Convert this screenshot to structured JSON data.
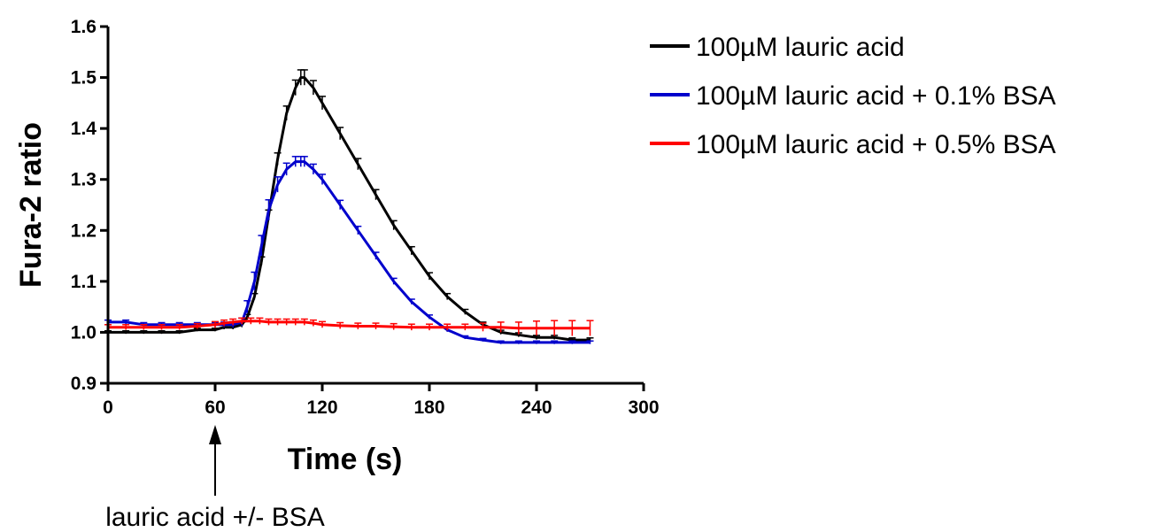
{
  "chart_data": {
    "type": "line",
    "title": "",
    "xlabel": "Time (s)",
    "ylabel": "Fura-2 ratio",
    "xlim": [
      0,
      300
    ],
    "ylim": [
      0.9,
      1.6
    ],
    "xticks": [
      0,
      60,
      120,
      180,
      240,
      300
    ],
    "yticks": [
      0.9,
      1.0,
      1.1,
      1.2,
      1.3,
      1.4,
      1.5,
      1.6
    ],
    "grid": false,
    "legend_position": "top-right",
    "error_bars": true,
    "series": [
      {
        "name": "100µM lauric acid",
        "color": "#000000",
        "x": [
          0,
          10,
          20,
          30,
          40,
          50,
          60,
          65,
          70,
          75,
          78,
          82,
          86,
          90,
          95,
          100,
          105,
          108,
          110,
          115,
          120,
          130,
          140,
          150,
          160,
          170,
          180,
          190,
          200,
          210,
          220,
          230,
          240,
          250,
          260,
          270
        ],
        "y": [
          1.0,
          1.0,
          1.0,
          1.0,
          1.0,
          1.005,
          1.005,
          1.01,
          1.01,
          1.015,
          1.03,
          1.07,
          1.14,
          1.23,
          1.34,
          1.43,
          1.48,
          1.5,
          1.5,
          1.48,
          1.45,
          1.39,
          1.33,
          1.27,
          1.21,
          1.16,
          1.11,
          1.07,
          1.04,
          1.015,
          1.0,
          0.995,
          0.99,
          0.99,
          0.985,
          0.985
        ],
        "err": [
          0.003,
          0.003,
          0.003,
          0.003,
          0.003,
          0.003,
          0.003,
          0.004,
          0.004,
          0.005,
          0.005,
          0.006,
          0.008,
          0.01,
          0.012,
          0.014,
          0.015,
          0.015,
          0.015,
          0.014,
          0.013,
          0.012,
          0.011,
          0.01,
          0.009,
          0.008,
          0.007,
          0.006,
          0.005,
          0.005,
          0.004,
          0.004,
          0.004,
          0.004,
          0.004,
          0.004
        ]
      },
      {
        "name": "100µM lauric acid + 0.1% BSA",
        "color": "#0000cc",
        "x": [
          0,
          10,
          20,
          30,
          40,
          50,
          60,
          65,
          70,
          75,
          78,
          82,
          86,
          90,
          95,
          100,
          105,
          108,
          110,
          115,
          120,
          130,
          140,
          150,
          160,
          170,
          180,
          190,
          200,
          210,
          220,
          230,
          240,
          250,
          260,
          270
        ],
        "y": [
          1.02,
          1.02,
          1.015,
          1.015,
          1.015,
          1.015,
          1.015,
          1.015,
          1.015,
          1.02,
          1.05,
          1.1,
          1.17,
          1.24,
          1.29,
          1.32,
          1.335,
          1.335,
          1.335,
          1.32,
          1.3,
          1.25,
          1.2,
          1.15,
          1.1,
          1.06,
          1.03,
          1.005,
          0.99,
          0.985,
          0.98,
          0.98,
          0.98,
          0.98,
          0.98,
          0.98
        ],
        "err": [
          0.004,
          0.004,
          0.004,
          0.004,
          0.004,
          0.004,
          0.004,
          0.005,
          0.006,
          0.008,
          0.012,
          0.018,
          0.02,
          0.02,
          0.015,
          0.012,
          0.01,
          0.01,
          0.01,
          0.01,
          0.01,
          0.009,
          0.008,
          0.007,
          0.006,
          0.005,
          0.004,
          0.004,
          0.003,
          0.003,
          0.003,
          0.003,
          0.003,
          0.003,
          0.003,
          0.003
        ]
      },
      {
        "name": "100µM lauric acid + 0.5% BSA",
        "color": "#ff0000",
        "x": [
          0,
          10,
          20,
          30,
          40,
          50,
          60,
          65,
          70,
          75,
          80,
          85,
          90,
          95,
          100,
          105,
          110,
          115,
          120,
          130,
          140,
          150,
          160,
          170,
          180,
          190,
          200,
          210,
          220,
          230,
          240,
          250,
          260,
          270
        ],
        "y": [
          1.01,
          1.01,
          1.01,
          1.01,
          1.01,
          1.012,
          1.015,
          1.018,
          1.02,
          1.022,
          1.022,
          1.022,
          1.02,
          1.02,
          1.02,
          1.02,
          1.02,
          1.018,
          1.015,
          1.013,
          1.012,
          1.012,
          1.011,
          1.01,
          1.01,
          1.01,
          1.01,
          1.01,
          1.01,
          1.008,
          1.008,
          1.008,
          1.008,
          1.008
        ],
        "err": [
          0.005,
          0.005,
          0.005,
          0.005,
          0.005,
          0.005,
          0.006,
          0.006,
          0.006,
          0.006,
          0.006,
          0.006,
          0.006,
          0.006,
          0.006,
          0.006,
          0.006,
          0.006,
          0.006,
          0.006,
          0.006,
          0.006,
          0.006,
          0.006,
          0.006,
          0.006,
          0.006,
          0.008,
          0.01,
          0.012,
          0.014,
          0.015,
          0.015,
          0.015
        ]
      }
    ],
    "annotations": [
      {
        "text": "lauric acid +/- BSA",
        "x": 60
      }
    ]
  }
}
